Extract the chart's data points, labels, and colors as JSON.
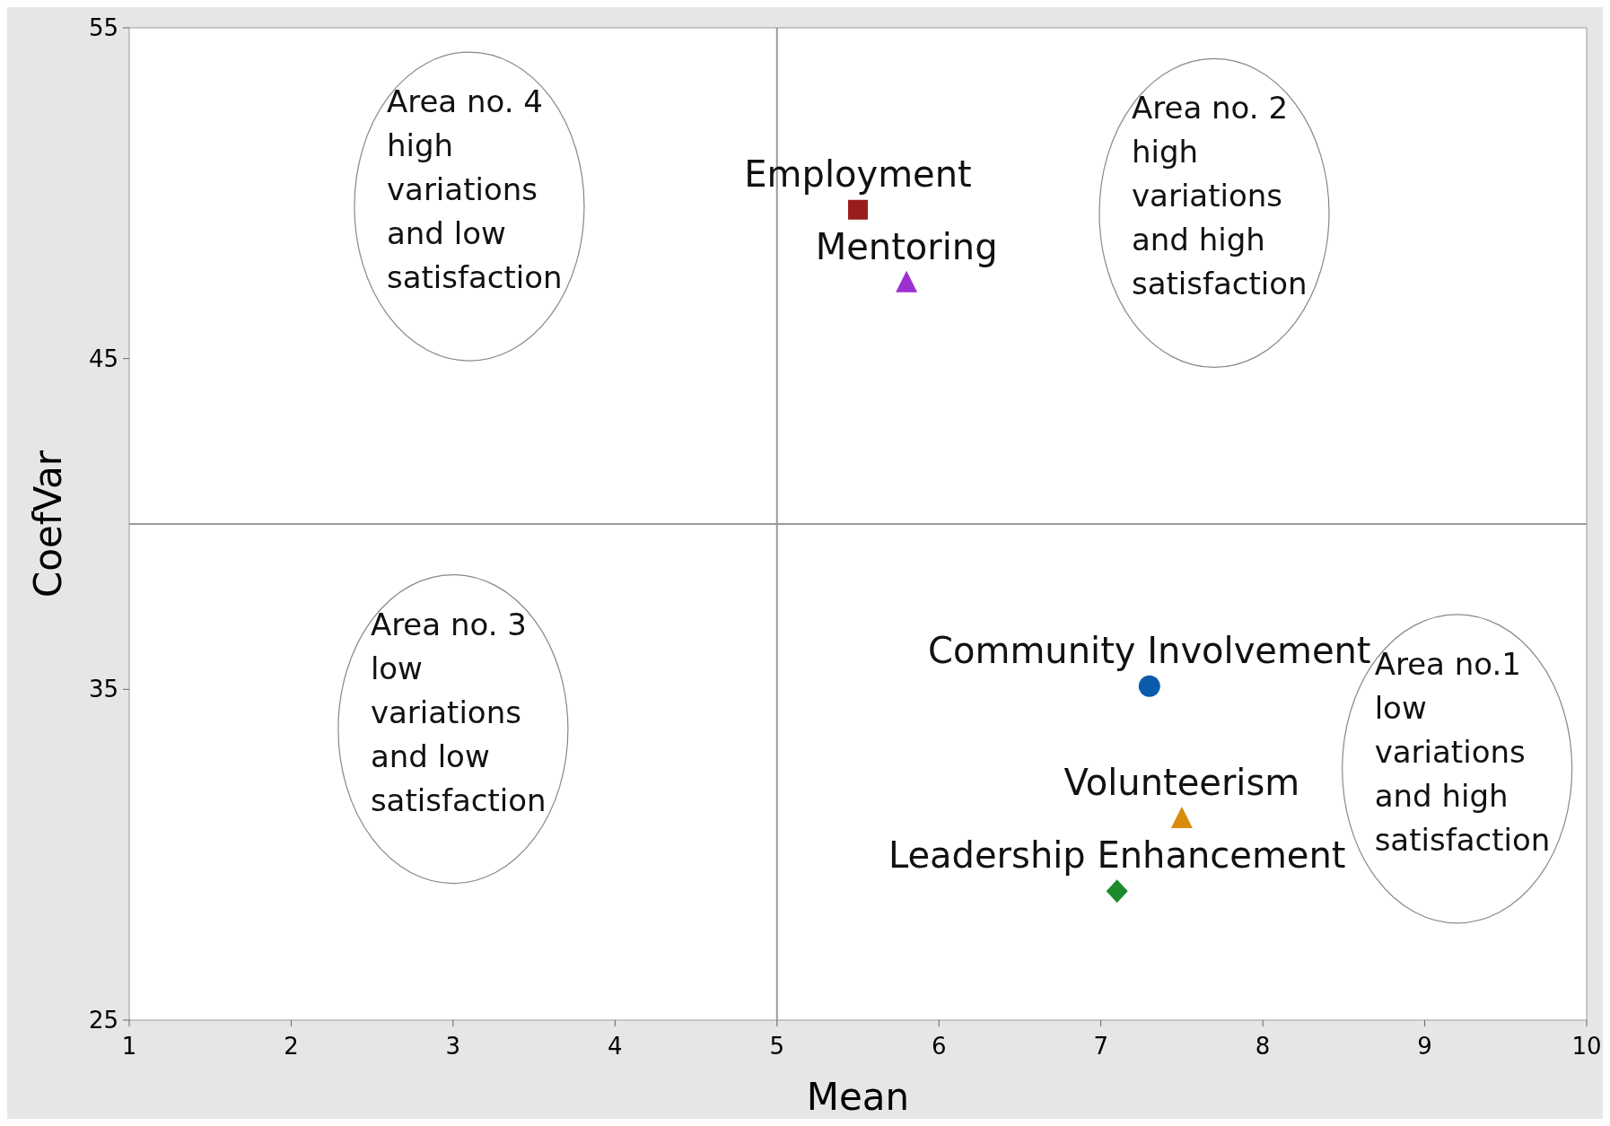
{
  "chart_data": {
    "type": "scatter",
    "xlabel": "Mean",
    "ylabel": "CoefVar",
    "xlim": [
      1,
      10
    ],
    "xticks": [
      1,
      2,
      3,
      4,
      5,
      6,
      7,
      8,
      9,
      10
    ],
    "ylim": [
      25,
      55
    ],
    "yticks": [
      25,
      35,
      45,
      55
    ],
    "grid": false,
    "series": [
      {
        "name": "Employment",
        "color": "#9b1c1c",
        "x": [
          5.5
        ],
        "values": [
          49.5
        ],
        "marker": "square"
      },
      {
        "name": "Mentoring",
        "color": "#9c2fd0",
        "x": [
          5.8
        ],
        "values": [
          47.3
        ],
        "marker": "triangle"
      },
      {
        "name": "Community Involvement",
        "color": "#0b5bab",
        "x": [
          7.3
        ],
        "values": [
          35.1
        ],
        "marker": "circle"
      },
      {
        "name": "Volunteerism",
        "color": "#d98b0c",
        "x": [
          7.5
        ],
        "values": [
          31.1
        ],
        "marker": "triangle"
      },
      {
        "name": "Leadership Enhancement",
        "color": "#1b8b2b",
        "x": [
          7.1
        ],
        "values": [
          28.9
        ],
        "marker": "diamond"
      }
    ],
    "ref_lines": [
      {
        "axis": "x",
        "value": 5,
        "color": "#9a9a9a"
      },
      {
        "axis": "y",
        "value": 40,
        "color": "#9a9a9a"
      }
    ],
    "annotations": [
      "Area no. 4\nhigh\nvariations\nand low\nsatisfaction",
      "Area no. 2\nhigh\nvariations\nand high\nsatisfaction",
      "Area no. 3\nlow\nvariations\nand low\nsatisfaction",
      "Area no.1\nlow\nvariations\nand high\nsatisfaction"
    ]
  }
}
